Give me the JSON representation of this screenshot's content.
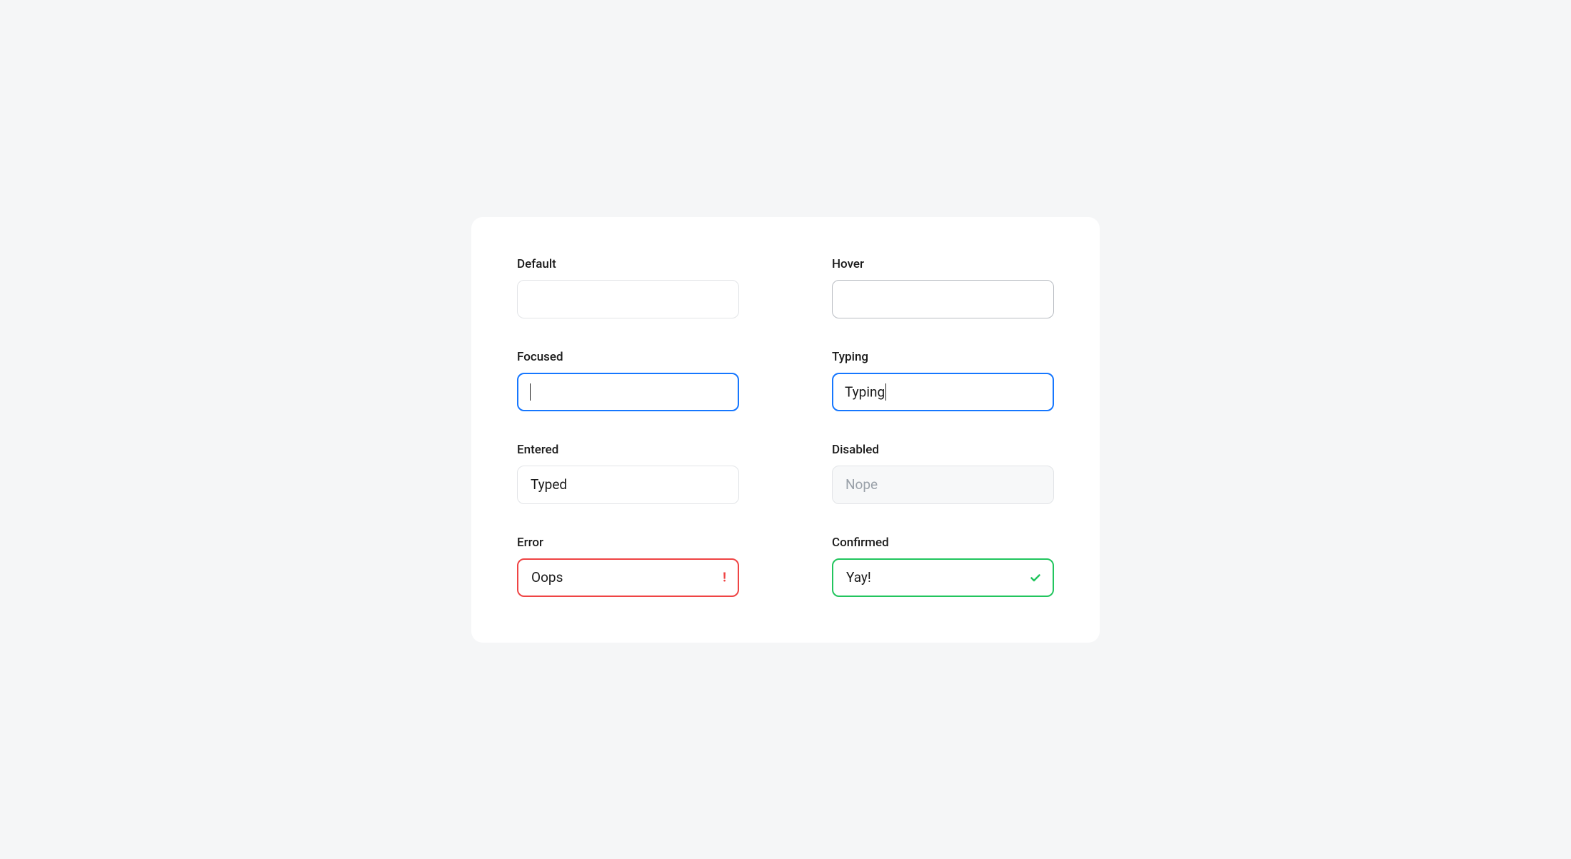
{
  "colors": {
    "page_bg": "#f5f6f7",
    "card_bg": "#ffffff",
    "text": "#1a1a1a",
    "border_default": "#e2e4e7",
    "border_hover": "#b8bcc2",
    "border_focus": "#1677ff",
    "border_error": "#ef4444",
    "border_success": "#22c55e",
    "disabled_bg": "#f7f8f9",
    "disabled_text": "#9aa1a9"
  },
  "fields": {
    "default": {
      "label": "Default",
      "value": ""
    },
    "hover": {
      "label": "Hover",
      "value": ""
    },
    "focused": {
      "label": "Focused",
      "value": ""
    },
    "typing": {
      "label": "Typing",
      "value": "Typing"
    },
    "entered": {
      "label": "Entered",
      "value": "Typed"
    },
    "disabled": {
      "label": "Disabled",
      "value": "Nope"
    },
    "error": {
      "label": "Error",
      "value": "Oops"
    },
    "confirmed": {
      "label": "Confirmed",
      "value": "Yay!"
    }
  }
}
